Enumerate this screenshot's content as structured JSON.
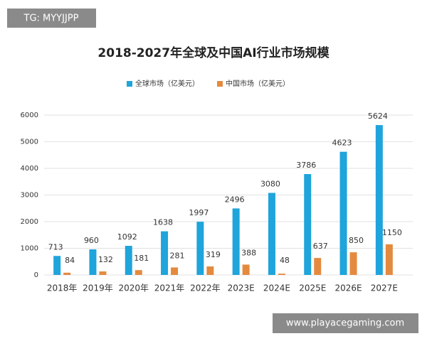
{
  "overlays": {
    "top_left": "TG: MYYJJPP",
    "bottom_right": "www.playacegaming.com"
  },
  "chart_data": {
    "type": "bar",
    "title": "2018-2027年全球及中国AI行业市场规模",
    "categories": [
      "2018年",
      "2019年",
      "2020年",
      "2021年",
      "2022年",
      "2023E",
      "2024E",
      "2025E",
      "2026E",
      "2027E"
    ],
    "series": [
      {
        "name": "全球市场（亿美元）",
        "color": "#1fa4dc",
        "values": [
          713,
          960,
          1092,
          1638,
          1997,
          2496,
          3080,
          3786,
          4623,
          5624
        ]
      },
      {
        "name": "中国市场（亿美元）",
        "color": "#e48a3f",
        "values": [
          84,
          132,
          181,
          281,
          319,
          388,
          48,
          637,
          850,
          1150
        ]
      }
    ],
    "ylim": [
      0,
      6000
    ],
    "yticks": [
      0,
      1000,
      2000,
      3000,
      4000,
      5000,
      6000
    ],
    "grid": true,
    "legend": "top"
  }
}
